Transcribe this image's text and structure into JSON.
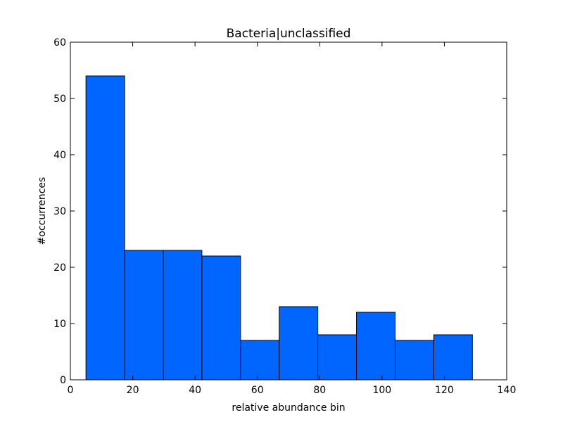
{
  "chart_data": {
    "type": "bar",
    "title": "Bacteria|unclassified",
    "xlabel": "relative abundance bin",
    "ylabel": "#occurrences",
    "xlim": [
      0,
      140
    ],
    "ylim": [
      0,
      60
    ],
    "xticks": [
      0,
      20,
      40,
      60,
      80,
      100,
      120,
      140
    ],
    "yticks": [
      0,
      10,
      20,
      30,
      40,
      50,
      60
    ],
    "bins": [
      {
        "start": 5.0,
        "end": 17.4,
        "count": 54
      },
      {
        "start": 17.4,
        "end": 29.8,
        "count": 23
      },
      {
        "start": 29.8,
        "end": 42.2,
        "count": 23
      },
      {
        "start": 42.2,
        "end": 54.6,
        "count": 22
      },
      {
        "start": 54.6,
        "end": 67.0,
        "count": 7
      },
      {
        "start": 67.0,
        "end": 79.4,
        "count": 13
      },
      {
        "start": 79.4,
        "end": 91.8,
        "count": 8
      },
      {
        "start": 91.8,
        "end": 104.2,
        "count": 12
      },
      {
        "start": 104.2,
        "end": 116.6,
        "count": 7
      },
      {
        "start": 116.6,
        "end": 129.0,
        "count": 8
      }
    ],
    "grid": false,
    "bar_color": "#0066ff",
    "edge_color": "#000000"
  }
}
